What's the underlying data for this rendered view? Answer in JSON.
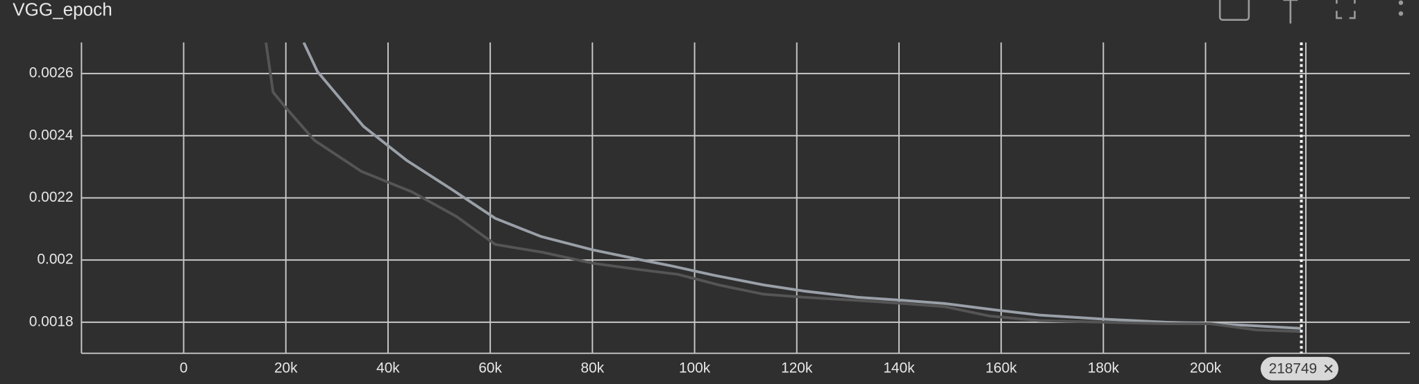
{
  "chart_data": {
    "type": "line",
    "title": "VGG_epoch",
    "xlim": [
      -20000,
      240000
    ],
    "ylim": [
      0.0017,
      0.0027
    ],
    "xticks": [
      {
        "value": 0,
        "label": "0"
      },
      {
        "value": 20000,
        "label": "20k"
      },
      {
        "value": 40000,
        "label": "40k"
      },
      {
        "value": 60000,
        "label": "60k"
      },
      {
        "value": 80000,
        "label": "80k"
      },
      {
        "value": 100000,
        "label": "100k"
      },
      {
        "value": 120000,
        "label": "120k"
      },
      {
        "value": 140000,
        "label": "140k"
      },
      {
        "value": 160000,
        "label": "160k"
      },
      {
        "value": 180000,
        "label": "180k"
      },
      {
        "value": 200000,
        "label": "200k"
      }
    ],
    "yticks": [
      0.0018,
      0.002,
      0.0022,
      0.0024,
      0.0026
    ],
    "grid": true,
    "hover_step": 218749,
    "series": [
      {
        "color": "#9aa0a8",
        "x": [
          23500,
          26200,
          35200,
          43700,
          52500,
          61000,
          69900,
          80000,
          89700,
          95800,
          103800,
          113500,
          121500,
          132000,
          141000,
          149000,
          158600,
          167500,
          179800,
          192200,
          199000,
          208000,
          218700
        ],
        "values": [
          0.0027,
          0.002606,
          0.00243,
          0.00232,
          0.002227,
          0.002134,
          0.002076,
          0.002033,
          0.002,
          0.00198,
          0.001951,
          0.00192,
          0.0019,
          0.00188,
          0.00187,
          0.00186,
          0.00184,
          0.001823,
          0.00181,
          0.0018,
          0.001797,
          0.00179,
          0.00178
        ]
      },
      {
        "color": "#555555",
        "x": [
          16100,
          17500,
          20000,
          25600,
          34800,
          44600,
          53400,
          61000,
          70200,
          80000,
          88800,
          96700,
          104700,
          113500,
          121500,
          132000,
          141000,
          149000,
          157700,
          167500,
          179800,
          192200,
          201000,
          210000,
          218700
        ],
        "values": [
          0.0027,
          0.00254,
          0.00249,
          0.002385,
          0.002285,
          0.00222,
          0.00214,
          0.00205,
          0.002025,
          0.00199,
          0.00197,
          0.001954,
          0.00192,
          0.00189,
          0.00188,
          0.00187,
          0.00186,
          0.00185,
          0.00182,
          0.001805,
          0.0018,
          0.001795,
          0.001795,
          0.001775,
          0.00177
        ]
      }
    ]
  }
}
